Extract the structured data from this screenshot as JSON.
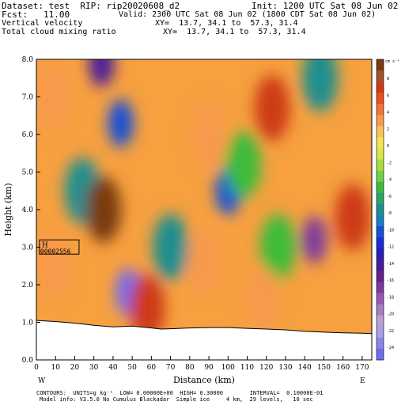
{
  "header": {
    "dataset_line": "Dataset: test  RIP: rip20020608_d2",
    "init_line": "Init: 1200 UTC Sat 08 Jun 02",
    "fcst_line": "Fcst:   11.00",
    "valid_line": "Valid: 2300 UTC Sat 08 Jun 02 (1800 CDT Sat 08 Jun 02)",
    "field1_name": "Vertical velocity",
    "field1_xy": "XY=  13.7, 34.1 to  57.3, 31.4",
    "field2_name": "Total cloud mixing ratio",
    "field2_xy": "XY=  13.7, 34.1 to  57.3, 31.4"
  },
  "footer": {
    "contours_line": "CONTOURS:  UNITS=g kg⁻¹  LOW= 0.00000E+00  HIGH= 0.30000        INTERVAL=  0.10000E-01",
    "model_line": "Model info: V3.5.0 No Cumulus Blackadar  Simple ice     4 km,  29 levels,   10 sec"
  },
  "chart_data": {
    "type": "heatmap",
    "title": "",
    "xlabel": "Distance (km)",
    "ylabel": "Height (km)",
    "xlim": [
      0,
      175
    ],
    "ylim": [
      0,
      8
    ],
    "x_ticks": [
      "0",
      "10",
      "20",
      "30",
      "40",
      "50",
      "60",
      "70",
      "80",
      "90",
      "100",
      "110",
      "120",
      "130",
      "140",
      "150",
      "160",
      "170"
    ],
    "y_ticks": [
      "0.0",
      "1.0",
      "2.0",
      "3.0",
      "4.0",
      "5.0",
      "6.0",
      "7.0",
      "8.0"
    ],
    "x_end_labels": {
      "left": "W",
      "right": "E"
    },
    "colorbar": {
      "units_label": "cm s⁻¹",
      "labels": [
        "8",
        "6",
        "4",
        "2",
        "0",
        "-2",
        "-4",
        "-6",
        "-8",
        "-10",
        "-12",
        "-14",
        "-16",
        "-18",
        "-20",
        "-22",
        "-24"
      ],
      "colors": [
        "#7a3b10",
        "#a0522d",
        "#cd3b14",
        "#e8501e",
        "#f4723a",
        "#f89a4c",
        "#fbc25a",
        "#f6e54e",
        "#d4e84a",
        "#a6de3c",
        "#6fd14a",
        "#3dbb3b",
        "#2aa56a",
        "#1d8f8f",
        "#1a7fc0",
        "#1650d6",
        "#1a2ed8",
        "#2a1cb8",
        "#4a1b9a",
        "#64218c",
        "#7c3a9e",
        "#9459b4",
        "#a97cc4",
        "#bba0d2",
        "#a7a0e8",
        "#8a86ee",
        "#6f6cf2"
      ]
    },
    "terrain": [
      [
        0,
        1.05
      ],
      [
        10,
        1.02
      ],
      [
        20,
        0.98
      ],
      [
        30,
        0.92
      ],
      [
        40,
        0.88
      ],
      [
        50,
        0.9
      ],
      [
        60,
        0.85
      ],
      [
        65,
        0.82
      ],
      [
        70,
        0.83
      ],
      [
        80,
        0.85
      ],
      [
        90,
        0.86
      ],
      [
        100,
        0.86
      ],
      [
        110,
        0.84
      ],
      [
        120,
        0.82
      ],
      [
        130,
        0.8
      ],
      [
        140,
        0.76
      ],
      [
        150,
        0.74
      ],
      [
        160,
        0.72
      ],
      [
        170,
        0.71
      ],
      [
        175,
        0.7
      ]
    ],
    "features": [
      {
        "x": 24,
        "y": 4.5,
        "value": -8
      },
      {
        "x": 35,
        "y": 4.0,
        "value": 8
      },
      {
        "x": 34,
        "y": 7.9,
        "value": -14
      },
      {
        "x": 44,
        "y": 6.3,
        "value": -10
      },
      {
        "x": 48,
        "y": 1.8,
        "value": -24
      },
      {
        "x": 58,
        "y": 1.4,
        "value": 6
      },
      {
        "x": 70,
        "y": 3.0,
        "value": -8
      },
      {
        "x": 88,
        "y": 2.6,
        "value": 2
      },
      {
        "x": 100,
        "y": 4.5,
        "value": -10
      },
      {
        "x": 108,
        "y": 5.2,
        "value": -6
      },
      {
        "x": 123,
        "y": 6.7,
        "value": 6
      },
      {
        "x": 126,
        "y": 3.0,
        "value": -6
      },
      {
        "x": 145,
        "y": 3.2,
        "value": -16
      },
      {
        "x": 148,
        "y": 7.5,
        "value": -8
      },
      {
        "x": 165,
        "y": 3.8,
        "value": 6
      },
      {
        "x": 8,
        "y": 7.0,
        "value": 2
      },
      {
        "x": 8,
        "y": 2.5,
        "value": 2
      },
      {
        "x": 90,
        "y": 6.0,
        "value": 2
      },
      {
        "x": 118,
        "y": 1.6,
        "value": 2
      }
    ],
    "marker": {
      "x": 14,
      "y": 2.9,
      "letter": "H",
      "value": "00002556"
    }
  }
}
